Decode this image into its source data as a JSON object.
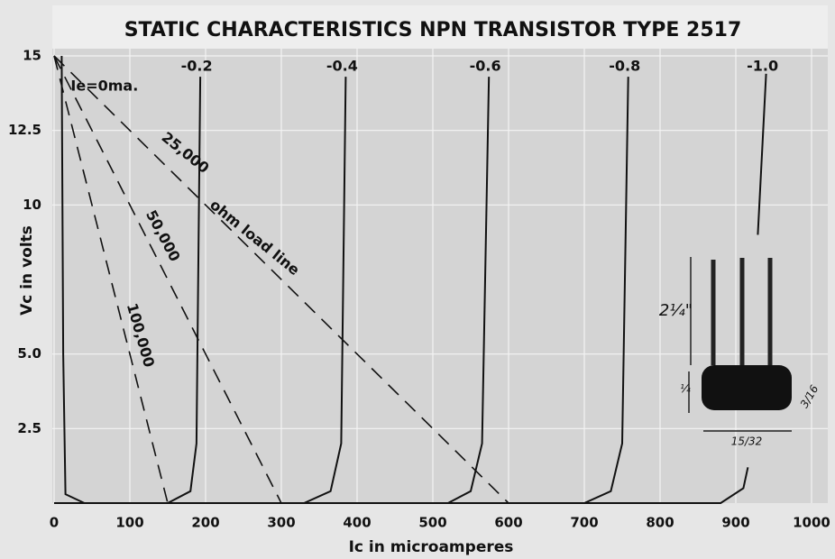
{
  "chart_data": {
    "type": "line",
    "title": "STATIC CHARACTERISTICS NPN TRANSISTOR TYPE 2517",
    "x_label": "Ic in microamperes",
    "y_label": "Vc in volts",
    "xlim": [
      0,
      1000
    ],
    "ylim": [
      0,
      15
    ],
    "xticks": [
      0,
      100,
      200,
      300,
      400,
      500,
      600,
      700,
      800,
      900,
      1000
    ],
    "yticks": [
      2.5,
      {
        "value": 5,
        "label": "5.0"
      },
      10,
      12.5,
      15
    ],
    "grid": true,
    "series": [
      {
        "name": "Ie=0ma.",
        "color": "#111111",
        "x": [
          10,
          12,
          15,
          40
        ],
        "values": [
          15,
          5,
          0.3,
          0
        ]
      },
      {
        "name": "-0.2",
        "color": "#111111",
        "x": [
          0,
          150,
          180,
          188,
          193
        ],
        "values": [
          0,
          0,
          0.4,
          2,
          14.3
        ]
      },
      {
        "name": "-0.4",
        "color": "#111111",
        "x": [
          0,
          330,
          365,
          379,
          385
        ],
        "values": [
          0,
          0,
          0.4,
          2,
          14.3
        ]
      },
      {
        "name": "-0.6",
        "color": "#111111",
        "x": [
          0,
          520,
          550,
          565,
          574
        ],
        "values": [
          0,
          0,
          0.4,
          2,
          14.3
        ]
      },
      {
        "name": "-0.8",
        "color": "#111111",
        "x": [
          0,
          700,
          735,
          750,
          758
        ],
        "values": [
          0,
          0,
          0.4,
          2,
          14.3
        ]
      },
      {
        "name": "-1.0",
        "color": "#111111",
        "x": [
          0,
          880,
          910,
          916,
          922,
          929,
          940
        ],
        "values": [
          0,
          0,
          0.5,
          1.2,
          null,
          9,
          14.4
        ]
      }
    ],
    "load_lines": [
      {
        "x": [
          0,
          600
        ],
        "values": [
          15,
          0
        ]
      },
      {
        "x": [
          0,
          300
        ],
        "values": [
          15,
          0
        ]
      },
      {
        "x": [
          0,
          150
        ],
        "values": [
          15,
          0
        ]
      }
    ],
    "annotations": [
      "25,000",
      "ohm load line",
      "50,000",
      "100,000"
    ],
    "inset_labels": [
      "2¼\"",
      "¼",
      "15/32",
      "3/16"
    ]
  }
}
